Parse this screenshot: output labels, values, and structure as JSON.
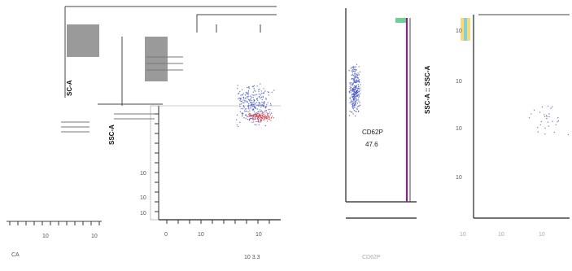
{
  "chart_data": [
    {
      "panel": "left",
      "type": "scatter",
      "title": "",
      "ylabel": "SSC-A",
      "ylabel_back": "SC-A",
      "xlabel": "",
      "y_ticks": [
        "10",
        "10",
        "10"
      ],
      "x_ticks": [
        "0",
        "10",
        "10"
      ],
      "x_ticks_back": [
        "10",
        "10"
      ],
      "x_extra": "",
      "corner_label": "CA",
      "bottom_right_label": "10 3.3",
      "series": [
        {
          "color": "#3b4cc0",
          "density": "high",
          "x_range": [
            0.6,
            0.95
          ],
          "y_range": [
            0.3,
            0.7
          ]
        },
        {
          "color": "#d83a3a",
          "density": "medium",
          "x_range": [
            0.7,
            0.95
          ],
          "y_range": [
            0.55,
            0.65
          ]
        }
      ]
    },
    {
      "panel": "middle",
      "type": "scatter",
      "title": "",
      "ylabel": "",
      "xlabel": "CD62P",
      "gate": {
        "name": "CD62P",
        "percent": "47.6",
        "color": "#8a1f8a"
      },
      "series": [
        {
          "color": "#3b4cc0",
          "density": "high",
          "x_range": [
            0.05,
            0.25
          ],
          "y_range": [
            0.25,
            0.55
          ]
        }
      ]
    },
    {
      "panel": "right",
      "type": "scatter",
      "title": "",
      "ylabel": "SSC-A :: SSC-A",
      "y_ticks": [
        "10",
        "10",
        "10",
        "10"
      ],
      "x_ticks": [
        "10",
        "10",
        "10"
      ],
      "series": [
        {
          "color": "#3b4cc0",
          "density": "low",
          "x_range": [
            0.5,
            1.0
          ],
          "y_range": [
            0.4,
            0.6
          ]
        }
      ]
    }
  ]
}
